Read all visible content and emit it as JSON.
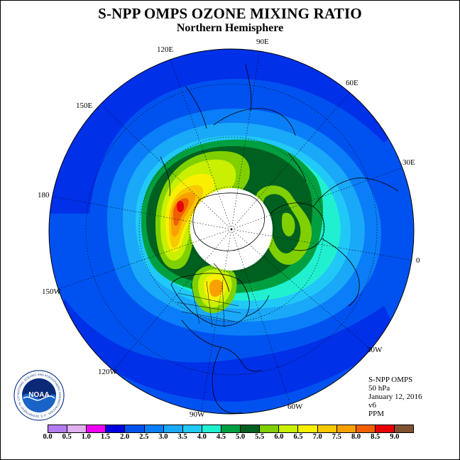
{
  "title": "S-NPP OMPS OZONE MIXING RATIO",
  "subtitle": "Northern Hemisphere",
  "longitude_labels": [
    "90E",
    "60E",
    "30E",
    "0",
    "30W",
    "60W",
    "90W",
    "120W",
    "150W",
    "180",
    "150E",
    "120E"
  ],
  "info": {
    "instrument": "S-NPP OMPS",
    "level": "50 hPa",
    "date": "January 12, 2016",
    "version": "v6",
    "units": "PPM"
  },
  "logo": {
    "text": "NOAA",
    "ring_text": "NATIONAL OCEANIC AND ATMOSPHERIC ADMINISTRATION · U.S. DEPARTMENT OF COMMERCE"
  },
  "colorbar": {
    "ticks": [
      "0.0",
      "0.5",
      "1.0",
      "1.5",
      "2.0",
      "2.5",
      "3.0",
      "3.5",
      "4.0",
      "4.5",
      "5.0",
      "5.5",
      "6.0",
      "6.5",
      "7.0",
      "7.5",
      "8.0",
      "8.5",
      "9.0"
    ],
    "colors": [
      "#b37bf0",
      "#e0b0f0",
      "#f000f0",
      "#0000e0",
      "#0052f0",
      "#0a7ef8",
      "#1aa8f8",
      "#20c8f8",
      "#20f0d0",
      "#00a040",
      "#006020",
      "#80d000",
      "#c8f000",
      "#f8f000",
      "#f8c800",
      "#f8a000",
      "#f06000",
      "#e80000",
      "#805030"
    ]
  }
}
